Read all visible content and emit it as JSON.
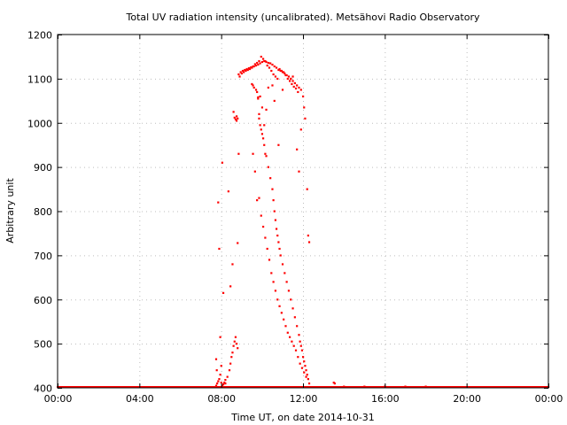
{
  "chart_data": {
    "type": "scatter",
    "title": "Total UV radiation intensity (uncalibrated). Metsähovi Radio Observatory",
    "xlabel": "Time UT, on date 2014-10-31",
    "ylabel": "Arbitrary unit",
    "xlim": [
      0,
      24
    ],
    "ylim": [
      400,
      1200
    ],
    "x_unit": "hours UT",
    "x_ticks": [
      0,
      4,
      8,
      12,
      16,
      20,
      24
    ],
    "x_tick_labels": [
      "00:00",
      "04:00",
      "08:00",
      "12:00",
      "16:00",
      "20:00",
      "00:00"
    ],
    "y_ticks": [
      400,
      500,
      600,
      700,
      800,
      900,
      1000,
      1100,
      1200
    ],
    "y_tick_labels": [
      "400",
      "500",
      "600",
      "700",
      "800",
      "900",
      "1000",
      "1100",
      "1200"
    ],
    "grid": true,
    "marker_color": "#ff0000",
    "series": [
      {
        "x": [
          0.0,
          0.6,
          1.2,
          1.8,
          2.4,
          3.0,
          3.6,
          4.2,
          4.8,
          5.4,
          6.0,
          6.6,
          7.2,
          7.6,
          7.75,
          7.8,
          7.85,
          7.9,
          7.95,
          8.0,
          8.05,
          8.1,
          8.15,
          8.2,
          8.3,
          8.4,
          8.45,
          8.5,
          8.55,
          8.6,
          8.65,
          8.7,
          8.75,
          8.8,
          7.75,
          7.78,
          7.85,
          7.9,
          7.95,
          8.0,
          8.05,
          8.1,
          8.2,
          8.35,
          8.45,
          8.55,
          8.6,
          8.65,
          8.7,
          8.75,
          8.8,
          8.85,
          8.9,
          9.0,
          9.1,
          9.2,
          9.3,
          9.4,
          9.5,
          9.6,
          9.7,
          9.8,
          9.9,
          10.0,
          10.1,
          10.2,
          10.3,
          10.4,
          10.5,
          10.6,
          10.7,
          10.8,
          10.9,
          11.0,
          11.1,
          11.2,
          11.3,
          11.4,
          11.5,
          11.6,
          11.7,
          11.8,
          11.9,
          8.85,
          8.95,
          9.05,
          9.15,
          9.25,
          9.35,
          9.45,
          9.55,
          9.65,
          9.75,
          9.85,
          9.95,
          10.05,
          10.15,
          10.25,
          10.35,
          10.45,
          10.55,
          10.65,
          10.75,
          10.85,
          10.95,
          11.05,
          11.15,
          11.25,
          11.35,
          11.45,
          11.55,
          11.65,
          11.75,
          9.5,
          9.55,
          9.6,
          9.7,
          9.75,
          9.8,
          9.85,
          9.9,
          9.95,
          10.0,
          10.05,
          10.1,
          10.15,
          10.2,
          10.3,
          10.4,
          10.5,
          10.55,
          10.6,
          10.65,
          10.7,
          10.75,
          10.8,
          10.85,
          10.9,
          11.0,
          11.1,
          11.2,
          11.3,
          11.4,
          11.5,
          11.6,
          11.7,
          11.8,
          11.85,
          11.9,
          11.95,
          12.0,
          12.05,
          12.1,
          12.15,
          12.2,
          12.25,
          12.3,
          9.55,
          9.65,
          9.75,
          9.85,
          9.95,
          10.05,
          10.15,
          10.25,
          10.35,
          10.45,
          10.55,
          10.65,
          10.75,
          10.85,
          10.95,
          11.05,
          11.15,
          11.25,
          11.35,
          11.45,
          11.55,
          11.65,
          11.75,
          11.85,
          11.95,
          12.05,
          12.15,
          8.75,
          8.8,
          9.8,
          9.85,
          9.9,
          10.0,
          10.1,
          10.2,
          10.3,
          10.5,
          10.6,
          10.8,
          11.0,
          11.4,
          11.5,
          11.7,
          11.8,
          11.9,
          12.0,
          12.05,
          12.1,
          12.2,
          12.25,
          12.3,
          13.5,
          13.55,
          14.0,
          15.0,
          16.0,
          17.0,
          18.0,
          19.0,
          20.0,
          21.0,
          22.0,
          23.0,
          24.0
        ],
        "y": [
          402,
          402,
          402,
          402,
          402,
          402,
          402,
          402,
          402,
          402,
          402,
          402,
          402,
          402,
          405,
          410,
          415,
          420,
          430,
          412,
          405,
          408,
          412,
          418,
          425,
          440,
          455,
          470,
          480,
          495,
          505,
          515,
          500,
          490,
          465,
          440,
          820,
          715,
          515,
          450,
          910,
          615,
          410,
          845,
          630,
          680,
          1025,
          1012,
          1008,
          1005,
          728,
          930,
          1105,
          1112,
          1115,
          1118,
          1120,
          1122,
          1125,
          1128,
          1130,
          1132,
          1135,
          1138,
          1140,
          1138,
          1136,
          1135,
          1132,
          1128,
          1125,
          1120,
          1118,
          1115,
          1112,
          1108,
          1105,
          1100,
          1095,
          1090,
          1085,
          1080,
          1075,
          1110,
          1115,
          1118,
          1120,
          1122,
          1124,
          1126,
          1128,
          1133,
          1136,
          1140,
          1150,
          1145,
          1140,
          1130,
          1125,
          1118,
          1110,
          1105,
          1100,
          1122,
          1118,
          1115,
          1108,
          1100,
          1095,
          1088,
          1082,
          1078,
          1070,
          1088,
          1085,
          1080,
          1075,
          1070,
          1055,
          1020,
          995,
          985,
          975,
          965,
          950,
          930,
          925,
          900,
          875,
          850,
          825,
          800,
          780,
          760,
          745,
          730,
          715,
          700,
          680,
          660,
          640,
          620,
          600,
          580,
          560,
          540,
          520,
          505,
          495,
          485,
          470,
          460,
          450,
          440,
          430,
          420,
          410,
          930,
          890,
          825,
          830,
          790,
          765,
          740,
          715,
          690,
          660,
          640,
          620,
          600,
          585,
          570,
          555,
          540,
          525,
          515,
          505,
          495,
          485,
          470,
          455,
          445,
          435,
          425,
          1015,
          1010,
          1058,
          1010,
          1060,
          1035,
          995,
          1030,
          1080,
          1085,
          1050,
          950,
          1075,
          1100,
          1105,
          940,
          890,
          985,
          1060,
          1035,
          1010,
          850,
          745,
          730,
          412,
          410,
          403,
          403,
          403,
          403,
          403,
          402,
          402,
          402,
          402,
          402,
          402
        ]
      }
    ]
  }
}
